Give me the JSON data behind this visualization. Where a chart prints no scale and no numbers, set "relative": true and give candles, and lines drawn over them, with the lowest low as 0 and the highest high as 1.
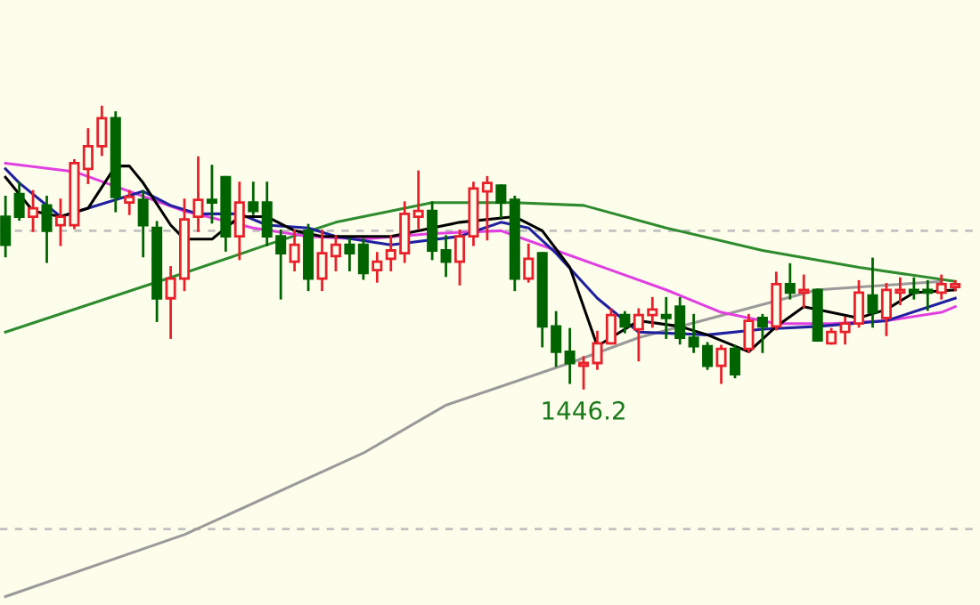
{
  "chart_data": {
    "type": "candlestick",
    "relative": true,
    "categories": [
      null,
      null,
      null,
      null,
      null,
      null,
      null,
      null,
      null,
      null,
      null,
      null,
      null,
      null,
      null,
      null,
      null,
      null,
      null,
      null,
      null,
      null,
      null,
      null,
      null,
      null,
      null,
      null,
      null,
      null,
      null,
      null,
      null,
      null,
      null,
      null,
      null,
      null,
      null,
      null,
      null,
      null,
      null,
      null,
      null,
      null,
      null,
      null,
      null,
      null,
      null,
      null,
      null,
      null,
      null,
      null,
      null,
      null,
      null,
      null,
      null,
      null,
      null,
      null,
      null,
      null,
      null,
      null,
      null,
      null
    ],
    "ohlc": [
      [
        0.61,
        0.68,
        0.47,
        0.51
      ],
      [
        0.69,
        0.73,
        0.6,
        0.61
      ],
      [
        0.61,
        0.7,
        0.56,
        0.64
      ],
      [
        0.65,
        0.68,
        0.45,
        0.56
      ],
      [
        0.58,
        0.67,
        0.51,
        0.61
      ],
      [
        0.58,
        0.81,
        0.57,
        0.8
      ],
      [
        0.78,
        0.92,
        0.73,
        0.86
      ],
      [
        0.86,
        1.0,
        0.83,
        0.96
      ],
      [
        0.96,
        0.98,
        0.63,
        0.68
      ],
      [
        0.66,
        0.7,
        0.62,
        0.68
      ],
      [
        0.67,
        0.7,
        0.47,
        0.58
      ],
      [
        0.57,
        0.59,
        0.24,
        0.32
      ],
      [
        0.32,
        0.43,
        0.18,
        0.39
      ],
      [
        0.39,
        0.67,
        0.35,
        0.6
      ],
      [
        0.61,
        0.82,
        0.56,
        0.67
      ],
      [
        0.67,
        0.79,
        0.59,
        0.66
      ],
      [
        0.75,
        0.75,
        0.49,
        0.54
      ],
      [
        0.54,
        0.73,
        0.46,
        0.66
      ],
      [
        0.66,
        0.73,
        0.62,
        0.63
      ],
      [
        0.66,
        0.73,
        0.51,
        0.54
      ],
      [
        0.54,
        0.56,
        0.32,
        0.48
      ],
      [
        0.45,
        0.56,
        0.42,
        0.51
      ],
      [
        0.56,
        0.58,
        0.35,
        0.39
      ],
      [
        0.39,
        0.56,
        0.35,
        0.48
      ],
      [
        0.47,
        0.54,
        0.42,
        0.51
      ],
      [
        0.51,
        0.53,
        0.42,
        0.48
      ],
      [
        0.51,
        0.53,
        0.39,
        0.41
      ],
      [
        0.42,
        0.48,
        0.38,
        0.45
      ],
      [
        0.46,
        0.54,
        0.42,
        0.49
      ],
      [
        0.48,
        0.66,
        0.45,
        0.62
      ],
      [
        0.61,
        0.77,
        0.57,
        0.63
      ],
      [
        0.63,
        0.66,
        0.46,
        0.49
      ],
      [
        0.49,
        0.54,
        0.4,
        0.45
      ],
      [
        0.45,
        0.56,
        0.37,
        0.54
      ],
      [
        0.54,
        0.73,
        0.51,
        0.71
      ],
      [
        0.7,
        0.75,
        0.53,
        0.73
      ],
      [
        0.72,
        0.72,
        0.61,
        0.66
      ],
      [
        0.67,
        0.68,
        0.35,
        0.39
      ],
      [
        0.39,
        0.51,
        0.38,
        0.46
      ],
      [
        0.48,
        0.48,
        0.15,
        0.22
      ],
      [
        0.22,
        0.27,
        0.08,
        0.13
      ],
      [
        0.13,
        0.21,
        0.02,
        0.09
      ],
      [
        0.08,
        0.11,
        0,
        0.09
      ],
      [
        0.09,
        0.2,
        0.07,
        0.16
      ],
      [
        0.16,
        0.28,
        0.16,
        0.26
      ],
      [
        0.26,
        0.27,
        0.2,
        0.22
      ],
      [
        0.21,
        0.28,
        0.1,
        0.26
      ],
      [
        0.26,
        0.32,
        0.22,
        0.28
      ],
      [
        0.26,
        0.32,
        0.18,
        0.25
      ],
      [
        0.29,
        0.32,
        0.16,
        0.18
      ],
      [
        0.18,
        0.26,
        0.13,
        0.15
      ],
      [
        0.15,
        0.16,
        0.07,
        0.08
      ],
      [
        0.08,
        0.15,
        0.02,
        0.14
      ],
      [
        0.14,
        0.15,
        0.04,
        0.05
      ],
      [
        0.14,
        0.26,
        0.13,
        0.24
      ],
      [
        0.25,
        0.26,
        0.13,
        0.22
      ],
      [
        0.22,
        0.41,
        0.21,
        0.37
      ],
      [
        0.37,
        0.44,
        0.32,
        0.34
      ],
      [
        0.34,
        0.4,
        0.29,
        0.35
      ],
      [
        0.35,
        0.35,
        0.17,
        0.17
      ],
      [
        0.16,
        0.21,
        0.16,
        0.2
      ],
      [
        0.2,
        0.25,
        0.16,
        0.23
      ],
      [
        0.23,
        0.38,
        0.22,
        0.34
      ],
      [
        0.33,
        0.46,
        0.22,
        0.27
      ],
      [
        0.25,
        0.37,
        0.19,
        0.35
      ],
      [
        0.34,
        0.39,
        0.3,
        0.35
      ],
      [
        0.35,
        0.39,
        0.32,
        0.34
      ],
      [
        0.35,
        0.38,
        0.28,
        0.34
      ],
      [
        0.34,
        0.4,
        0.32,
        0.37
      ],
      [
        0.36,
        0.38,
        0.35,
        0.37
      ]
    ],
    "series": [
      {
        "type": "line",
        "color": "#9a9a9a",
        "values": [
          -0.74,
          null,
          null,
          null,
          null,
          null,
          null,
          null,
          null,
          null,
          null,
          null,
          null,
          -0.52,
          null,
          null,
          null,
          null,
          null,
          null,
          null,
          null,
          null,
          null,
          null,
          null,
          -0.23,
          null,
          null,
          null,
          null,
          null,
          -0.06,
          null,
          null,
          null,
          null,
          null,
          null,
          null,
          null,
          0.09,
          null,
          null,
          null,
          null,
          0.18,
          null,
          null,
          null,
          null,
          null,
          null,
          null,
          null,
          null,
          null,
          null,
          null,
          0.35,
          null,
          null,
          null,
          null,
          null,
          null,
          null,
          null,
          0.38,
          null
        ]
      },
      {
        "type": "line",
        "color": "#2e8b2e",
        "values": [
          0.2,
          null,
          null,
          null,
          null,
          null,
          null,
          null,
          null,
          null,
          null,
          null,
          null,
          0.41,
          null,
          null,
          null,
          null,
          null,
          0.51,
          null,
          null,
          null,
          null,
          0.59,
          null,
          null,
          null,
          null,
          null,
          null,
          0.66,
          null,
          null,
          null,
          null,
          null,
          0.66,
          null,
          null,
          null,
          null,
          0.65,
          null,
          null,
          null,
          null,
          null,
          0.57,
          null,
          null,
          null,
          null,
          null,
          null,
          0.49,
          null,
          null,
          null,
          null,
          null,
          null,
          0.43,
          null,
          null,
          null,
          null,
          null,
          null,
          0.38
        ]
      },
      {
        "type": "line",
        "color": "#e040e0",
        "values": [
          0.8,
          null,
          null,
          null,
          null,
          0.77,
          null,
          null,
          null,
          0.7,
          null,
          null,
          null,
          0.63,
          null,
          null,
          null,
          null,
          0.57,
          null,
          null,
          null,
          0.54,
          null,
          null,
          null,
          0.53,
          null,
          null,
          null,
          null,
          0.55,
          null,
          null,
          null,
          null,
          0.56,
          null,
          null,
          null,
          0.49,
          null,
          null,
          null,
          0.42,
          null,
          null,
          null,
          0.35,
          null,
          null,
          null,
          0.27,
          null,
          null,
          null,
          0.23,
          null,
          null,
          null,
          0.23,
          null,
          null,
          null,
          0.24,
          null,
          null,
          null,
          0.27,
          0.29
        ]
      },
      {
        "type": "line",
        "color": "#2020a0",
        "values": [
          0.78,
          0.73,
          null,
          null,
          0.61,
          null,
          0.64,
          null,
          0.67,
          null,
          0.7,
          null,
          0.65,
          null,
          0.62,
          null,
          null,
          0.62,
          null,
          0.58,
          null,
          null,
          0.57,
          null,
          0.54,
          null,
          null,
          null,
          0.51,
          null,
          null,
          null,
          null,
          0.54,
          null,
          null,
          0.59,
          null,
          0.57,
          null,
          0.48,
          null,
          null,
          0.32,
          null,
          null,
          0.2,
          null,
          null,
          null,
          null,
          0.19,
          null,
          null,
          null,
          0.21,
          null,
          null,
          null,
          0.22,
          null,
          null,
          null,
          null,
          0.24,
          null,
          null,
          null,
          null,
          0.32
        ]
      },
      {
        "type": "line",
        "color": "#000000",
        "values": [
          0.75,
          null,
          0.63,
          null,
          0.61,
          null,
          0.64,
          null,
          0.79,
          0.79,
          0.73,
          null,
          0.58,
          0.53,
          null,
          0.53,
          null,
          0.61,
          null,
          0.61,
          null,
          0.56,
          null,
          0.54,
          null,
          null,
          null,
          null,
          0.54,
          null,
          null,
          null,
          null,
          0.59,
          null,
          null,
          null,
          0.61,
          null,
          0.56,
          null,
          0.43,
          null,
          0.15,
          null,
          null,
          0.24,
          null,
          null,
          0.22,
          null,
          0.19,
          null,
          null,
          0.13,
          null,
          0.22,
          null,
          0.29,
          null,
          null,
          null,
          0.25,
          null,
          0.28,
          null,
          0.34,
          null,
          null,
          0.35
        ]
      }
    ],
    "ref_lines": [
      {
        "axis": "y",
        "value": 0.56,
        "color": "#c0c0c0",
        "line_style": "dashed"
      },
      {
        "axis": "y",
        "value": -0.5,
        "color": "#c0c0c0",
        "line_style": "dashed"
      }
    ],
    "annotations": [
      {
        "text": "1446.2",
        "y": 0
      }
    ],
    "grid": false,
    "legend": false
  }
}
